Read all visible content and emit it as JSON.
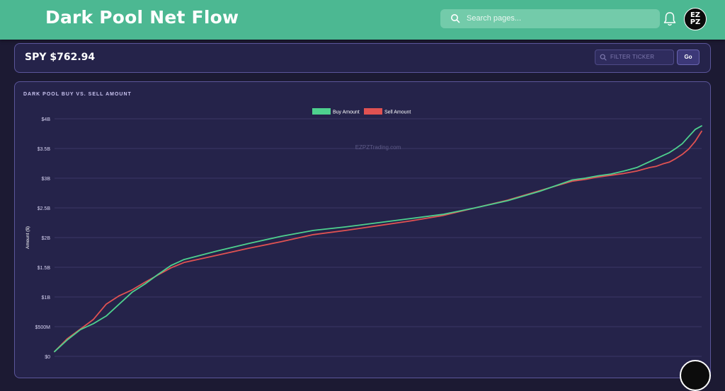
{
  "header": {
    "title": "Dark Pool Net Flow",
    "search_placeholder": "Search pages...",
    "avatar_text_top": "EZ",
    "avatar_text_bottom": "PZ"
  },
  "ticker": {
    "price_label": "SPY $762.94",
    "filter_placeholder": "FILTER TICKER",
    "go_label": "Go"
  },
  "chart_panel": {
    "title": "DARK POOL BUY VS. SELL AMOUNT"
  },
  "colors": {
    "header_bg": "#4cb892",
    "page_bg": "#1c1a33",
    "panel_bg": "#25234a",
    "buy": "#4ed18e",
    "sell": "#e05252"
  },
  "chart_data": {
    "type": "line",
    "title": "",
    "watermark": "EZPZTrading.com",
    "xlabel": "",
    "ylabel": "Amount ($)",
    "ylim": [
      0,
      4000000000
    ],
    "yticks": [
      {
        "value": 0,
        "label": "$0"
      },
      {
        "value": 500000000,
        "label": "$500M"
      },
      {
        "value": 1000000000,
        "label": "$1B"
      },
      {
        "value": 1500000000,
        "label": "$1.5B"
      },
      {
        "value": 2000000000,
        "label": "$2B"
      },
      {
        "value": 2500000000,
        "label": "$2.5B"
      },
      {
        "value": 3000000000,
        "label": "$3B"
      },
      {
        "value": 3500000000,
        "label": "$3.5B"
      },
      {
        "value": 4000000000,
        "label": "$4B"
      }
    ],
    "grid": true,
    "legend": "top-center",
    "x": [
      0,
      2,
      4,
      6,
      8,
      10,
      12,
      14,
      16,
      18,
      20,
      25,
      30,
      35,
      40,
      45,
      50,
      55,
      60,
      65,
      70,
      75,
      80,
      82,
      84,
      86,
      88,
      90,
      91,
      92,
      93,
      94,
      95,
      96,
      97,
      98,
      99,
      100
    ],
    "series": [
      {
        "name": "Buy Amount",
        "color": "#4ed18e",
        "values": [
          0.08,
          0.28,
          0.45,
          0.55,
          0.68,
          0.88,
          1.08,
          1.22,
          1.38,
          1.53,
          1.63,
          1.77,
          1.9,
          2.02,
          2.12,
          2.18,
          2.25,
          2.32,
          2.39,
          2.5,
          2.62,
          2.78,
          2.97,
          3.0,
          3.04,
          3.07,
          3.12,
          3.18,
          3.23,
          3.28,
          3.33,
          3.38,
          3.43,
          3.5,
          3.58,
          3.7,
          3.82,
          3.88
        ]
      },
      {
        "name": "Sell Amount",
        "color": "#e05252",
        "values": [
          0.08,
          0.3,
          0.46,
          0.62,
          0.88,
          1.02,
          1.12,
          1.25,
          1.37,
          1.49,
          1.58,
          1.7,
          1.82,
          1.93,
          2.05,
          2.12,
          2.2,
          2.28,
          2.37,
          2.5,
          2.63,
          2.79,
          2.95,
          2.98,
          3.02,
          3.05,
          3.08,
          3.12,
          3.15,
          3.18,
          3.2,
          3.24,
          3.27,
          3.33,
          3.4,
          3.49,
          3.62,
          3.79
        ]
      }
    ],
    "value_unit": "billions USD"
  }
}
